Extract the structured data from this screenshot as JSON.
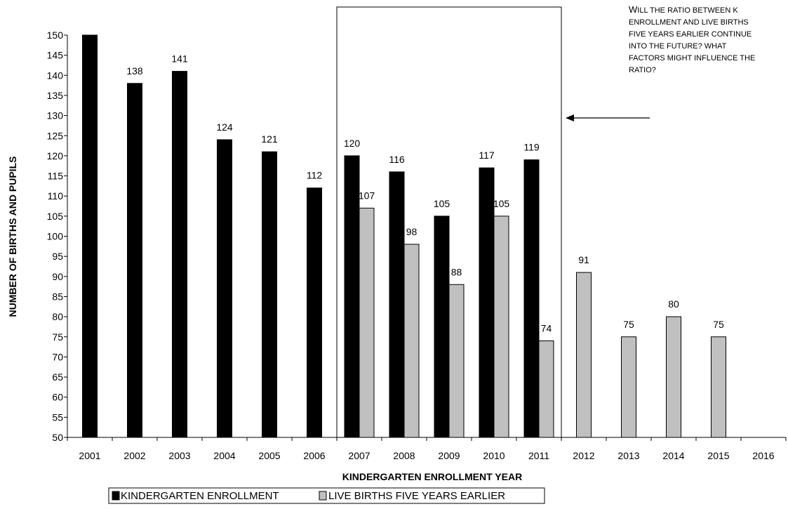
{
  "chart_data": {
    "type": "bar",
    "categories": [
      "2001",
      "2002",
      "2003",
      "2004",
      "2005",
      "2006",
      "2007",
      "2008",
      "2009",
      "2010",
      "2011",
      "2012",
      "2013",
      "2014",
      "2015",
      "2016"
    ],
    "series": [
      {
        "name": "KINDERGARTEN ENROLLMENT",
        "color": "#000000",
        "values": [
          150,
          138,
          141,
          124,
          121,
          112,
          120,
          116,
          105,
          117,
          119,
          null,
          null,
          null,
          null,
          null
        ],
        "data_labels": [
          null,
          "138",
          "141",
          "124",
          "121",
          "112",
          "120",
          "116",
          "105",
          "117",
          "119",
          null,
          null,
          null,
          null,
          null
        ]
      },
      {
        "name": "LIVE BIRTHS FIVE YEARS EARLIER",
        "color": "#c0c0c0",
        "values": [
          null,
          null,
          null,
          null,
          null,
          null,
          107,
          98,
          88,
          105,
          74,
          91,
          75,
          80,
          75,
          null
        ],
        "data_labels": [
          null,
          null,
          null,
          null,
          null,
          null,
          "107",
          "98",
          "88",
          "105",
          "74",
          "91",
          "75",
          "80",
          "75",
          null
        ]
      }
    ],
    "xlabel": "KINDERGARTEN ENROLLMENT YEAR",
    "ylabel": "NUMBER OF BIRTHS AND PUPILS",
    "ylim": [
      50,
      150
    ],
    "ytick_step": 5,
    "grid": false,
    "legend": "bottom",
    "highlight_box_categories": [
      "2007",
      "2011"
    ],
    "annotation": {
      "lines": [
        [
          "W",
          "ILL THE RATIO BETWEEN K"
        ],
        [
          "",
          "ENROLLMENT AND LIVE BIRTHS"
        ],
        [
          "",
          "FIVE YEARS EARLIER CONTINUE"
        ],
        [
          "",
          "INTO THE FUTURE?  WHAT"
        ],
        [
          "",
          "FACTORS MIGHT INFLUENCE THE"
        ],
        [
          "",
          "RATIO?"
        ]
      ]
    }
  }
}
